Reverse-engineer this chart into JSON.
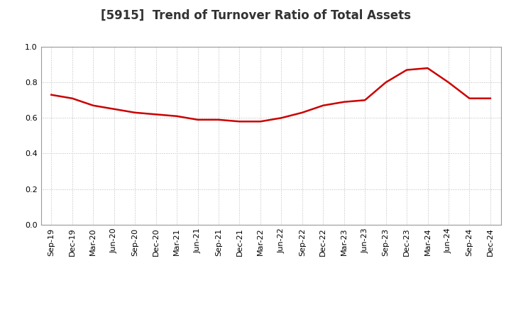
{
  "title": "[5915]  Trend of Turnover Ratio of Total Assets",
  "x_labels": [
    "Sep-19",
    "Dec-19",
    "Mar-20",
    "Jun-20",
    "Sep-20",
    "Dec-20",
    "Mar-21",
    "Jun-21",
    "Sep-21",
    "Dec-21",
    "Mar-22",
    "Jun-22",
    "Sep-22",
    "Dec-22",
    "Mar-23",
    "Jun-23",
    "Sep-23",
    "Dec-23",
    "Mar-24",
    "Jun-24",
    "Sep-24",
    "Dec-24"
  ],
  "y_values": [
    0.73,
    0.71,
    0.67,
    0.65,
    0.63,
    0.62,
    0.61,
    0.59,
    0.59,
    0.58,
    0.58,
    0.6,
    0.63,
    0.67,
    0.69,
    0.7,
    0.8,
    0.87,
    0.88,
    0.8,
    0.71,
    0.71
  ],
  "ylim": [
    0.0,
    1.0
  ],
  "yticks": [
    0.0,
    0.2,
    0.4,
    0.6,
    0.8,
    1.0
  ],
  "line_color": "#cc0000",
  "line_width": 1.8,
  "background_color": "#ffffff",
  "plot_bg_color": "#ffffff",
  "grid_color": "#bbbbbb",
  "title_fontsize": 12,
  "tick_fontsize": 8,
  "ytick_fontsize": 8
}
